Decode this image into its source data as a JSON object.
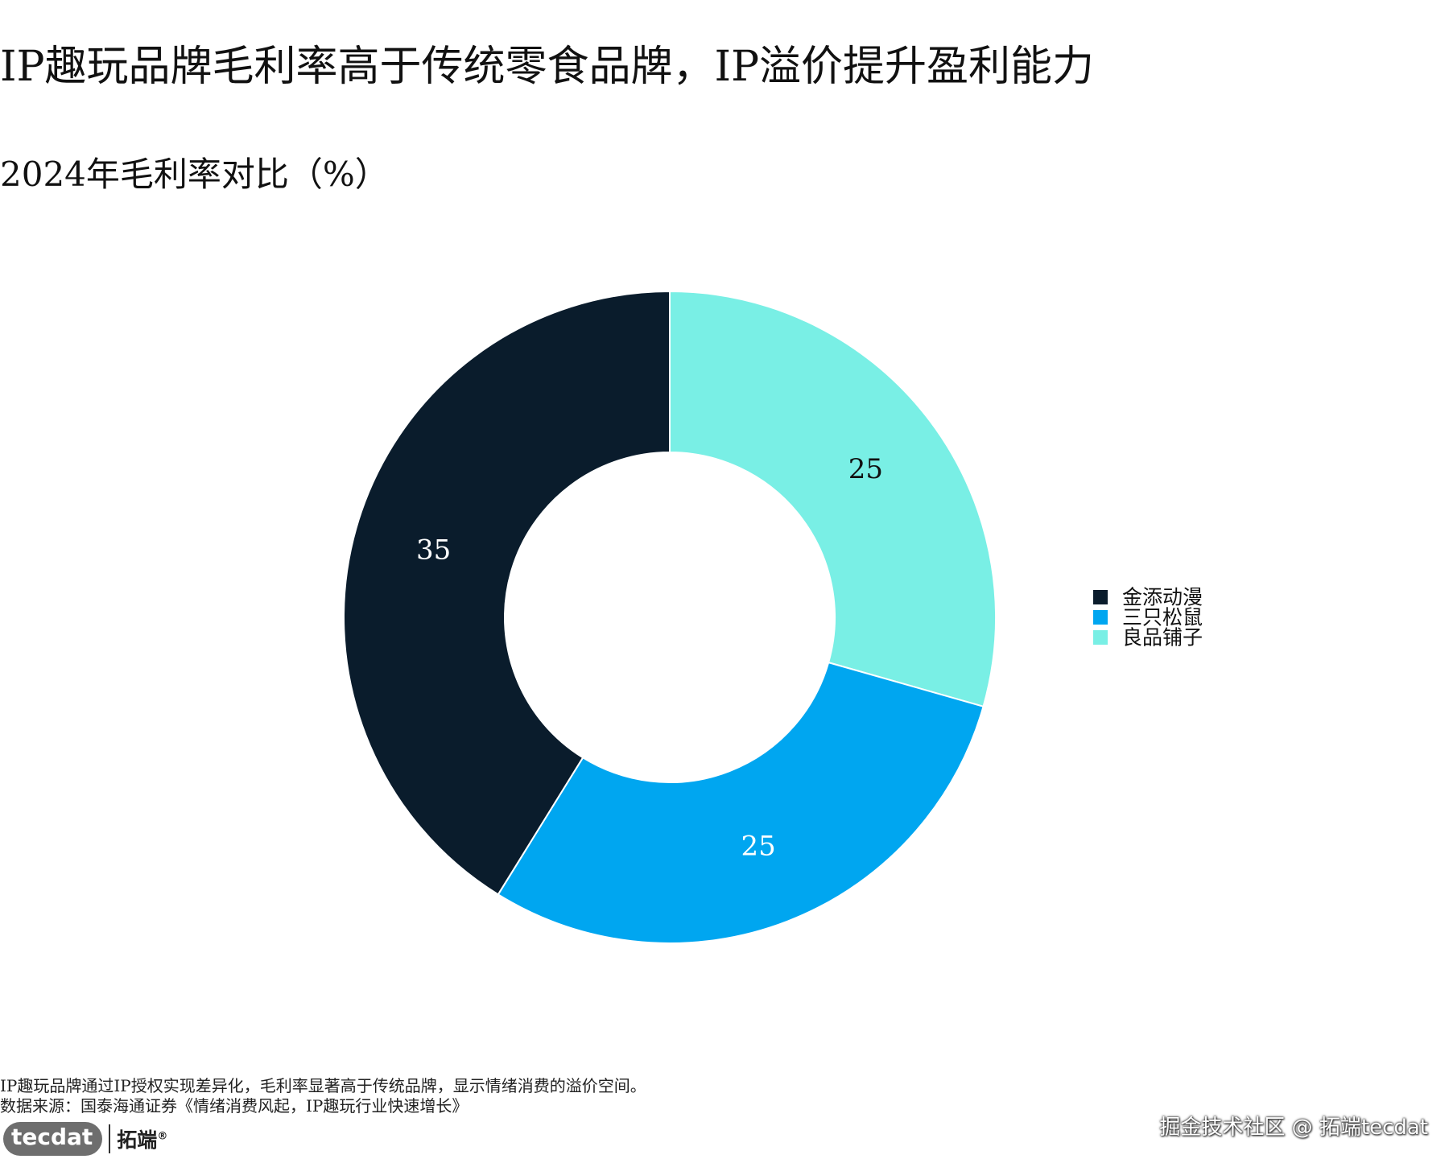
{
  "title": "IP趣玩品牌毛利率高于传统零食品牌，IP溢价提升盈利能力",
  "subtitle": "2024年毛利率对比（%）",
  "chart_data": {
    "type": "pie",
    "donut": true,
    "categories": [
      "金添动漫",
      "三只松鼠",
      "良品铺子"
    ],
    "values": [
      35,
      25,
      25
    ],
    "colors": [
      "#0a1c2c",
      "#00a6f0",
      "#79efe5"
    ],
    "label_colors": [
      "#ffffff",
      "#ffffff",
      "#111111"
    ],
    "legend_position": "right",
    "title": "2024年毛利率对比（%）"
  },
  "footnotes": {
    "note": "IP趣玩品牌通过IP授权实现差异化，毛利率显著高于传统品牌，显示情绪消费的溢价空间。",
    "source": "数据来源：国泰海通证券《情绪消费风起，IP趣玩行业快速增长》"
  },
  "logo": {
    "badge": "tecdat",
    "chinese": "拓端",
    "reg": "®"
  },
  "watermark": "掘金技术社区 @ 拓端tecdat"
}
